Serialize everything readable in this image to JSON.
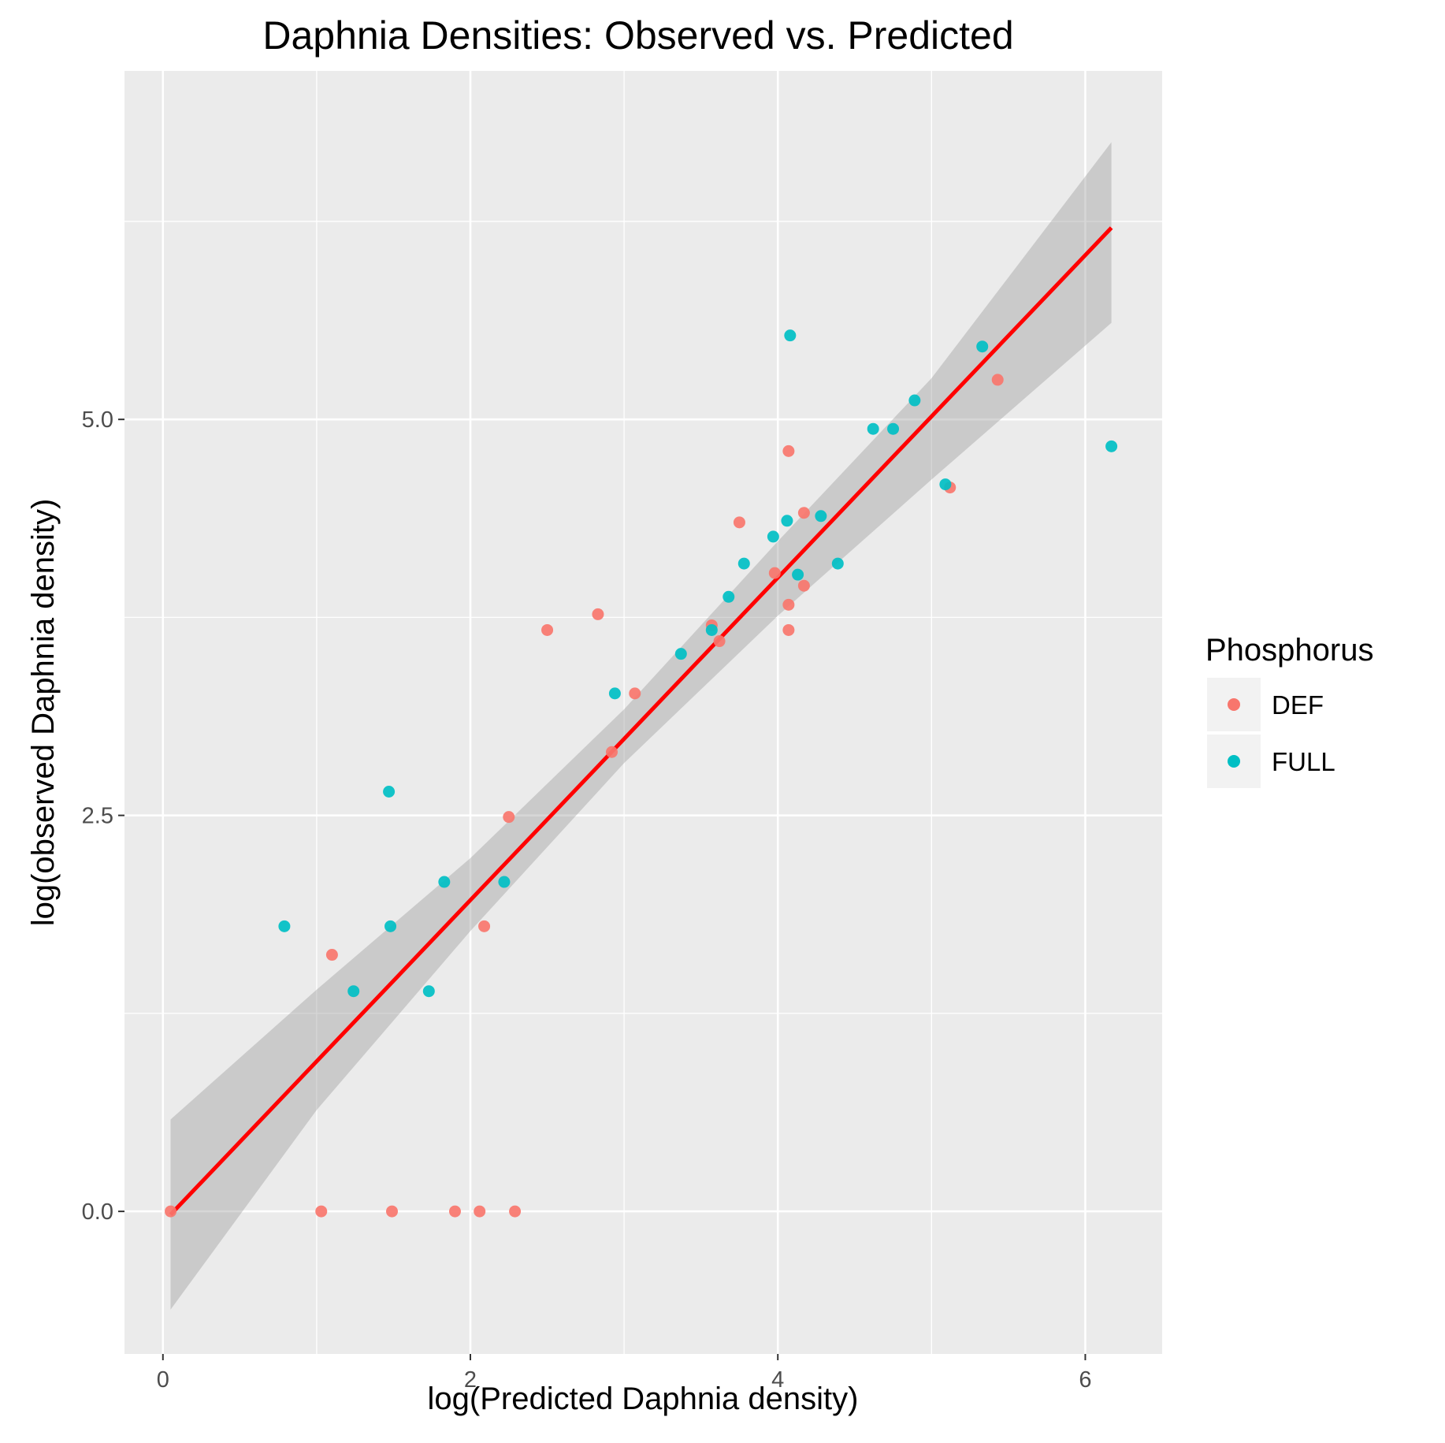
{
  "chart_data": {
    "type": "scatter",
    "title": "Daphnia Densities: Observed vs. Predicted",
    "xlabel": "log(Predicted Daphnia density)",
    "ylabel": "log(observed Daphnia density)",
    "xlim": [
      -0.25,
      6.5
    ],
    "ylim": [
      -0.9,
      7.2
    ],
    "x_ticks": [
      0,
      2,
      4,
      6
    ],
    "x_tick_labels": [
      "0",
      "2",
      "4",
      "6"
    ],
    "y_ticks": [
      0,
      2.5,
      5
    ],
    "y_tick_labels": [
      "0.0",
      "2.5",
      "5.0"
    ],
    "grid": true,
    "legend": {
      "title": "Phosphorus",
      "position": "right",
      "entries": [
        "DEF",
        "FULL"
      ]
    },
    "colors": {
      "DEF": "#F8766D",
      "FULL": "#00BFC4",
      "fit_line": "#FF0000",
      "ribbon": "#999999",
      "panel": "#EBEBEB"
    },
    "series": [
      {
        "name": "DEF",
        "points": [
          [
            0.05,
            0.0
          ],
          [
            1.03,
            0.0
          ],
          [
            1.49,
            0.0
          ],
          [
            1.9,
            0.0
          ],
          [
            2.06,
            0.0
          ],
          [
            2.29,
            0.0
          ],
          [
            1.1,
            1.62
          ],
          [
            2.09,
            1.8
          ],
          [
            2.25,
            2.49
          ],
          [
            2.5,
            3.67
          ],
          [
            2.83,
            3.77
          ],
          [
            2.92,
            2.9
          ],
          [
            3.07,
            3.27
          ],
          [
            3.57,
            3.7
          ],
          [
            3.62,
            3.6
          ],
          [
            3.75,
            4.35
          ],
          [
            3.98,
            4.03
          ],
          [
            4.07,
            3.83
          ],
          [
            4.07,
            3.67
          ],
          [
            4.07,
            4.8
          ],
          [
            4.17,
            3.95
          ],
          [
            4.17,
            4.41
          ],
          [
            5.12,
            4.57
          ],
          [
            5.43,
            5.25
          ]
        ]
      },
      {
        "name": "FULL",
        "points": [
          [
            0.79,
            1.8
          ],
          [
            1.24,
            1.39
          ],
          [
            1.47,
            2.65
          ],
          [
            1.48,
            1.8
          ],
          [
            1.73,
            1.39
          ],
          [
            1.83,
            2.08
          ],
          [
            2.22,
            2.08
          ],
          [
            2.94,
            3.27
          ],
          [
            3.37,
            3.52
          ],
          [
            3.57,
            3.67
          ],
          [
            3.68,
            3.88
          ],
          [
            3.78,
            4.09
          ],
          [
            3.97,
            4.26
          ],
          [
            4.06,
            4.36
          ],
          [
            4.08,
            5.53
          ],
          [
            4.13,
            4.02
          ],
          [
            4.28,
            4.39
          ],
          [
            4.39,
            4.09
          ],
          [
            4.62,
            4.94
          ],
          [
            4.75,
            4.94
          ],
          [
            4.89,
            5.12
          ],
          [
            5.09,
            4.59
          ],
          [
            5.33,
            5.46
          ],
          [
            6.17,
            4.83
          ]
        ]
      }
    ],
    "fit_line": {
      "x": [
        0.05,
        6.17
      ],
      "y": [
        -0.02,
        6.21
      ]
    },
    "confidence_band": {
      "x": [
        0.05,
        1.0,
        2.0,
        3.0,
        4.0,
        5.0,
        6.17
      ],
      "lower": [
        -0.62,
        0.64,
        1.77,
        2.83,
        3.76,
        4.62,
        5.61
      ],
      "upper": [
        0.58,
        1.4,
        2.23,
        3.17,
        4.23,
        5.26,
        6.75
      ]
    }
  }
}
